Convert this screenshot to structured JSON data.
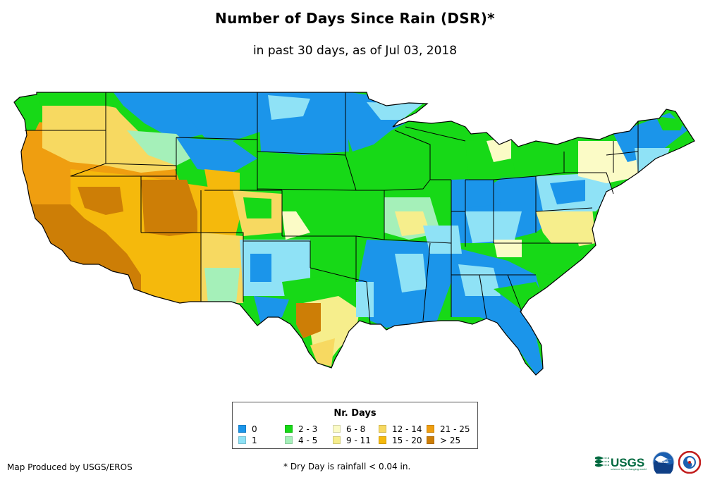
{
  "title": "Number of Days Since Rain (DSR)*",
  "subtitle": "in past 30 days, as of Jul 03, 2018",
  "legend": {
    "title": "Nr. Days",
    "items": [
      {
        "label": "0",
        "color": "#1b95ea"
      },
      {
        "label": "1",
        "color": "#8fe2f6"
      },
      {
        "label": "2 - 3",
        "color": "#17d917"
      },
      {
        "label": "4 - 5",
        "color": "#a5f0b9"
      },
      {
        "label": "6 - 8",
        "color": "#fbfbc6"
      },
      {
        "label": "9 - 11",
        "color": "#f6ee8c"
      },
      {
        "label": "12 - 14",
        "color": "#f7d961"
      },
      {
        "label": "15 - 20",
        "color": "#f5b90c"
      },
      {
        "label": "21 - 25",
        "color": "#ef9e10"
      },
      {
        "label": "> 25",
        "color": "#cd7e06"
      }
    ]
  },
  "credit": "Map Produced by USGS/EROS",
  "footnote": "* Dry Day is rainfall < 0.04 in.",
  "logos": {
    "usgs": "USGS",
    "usgs_tagline": "science for a changing world",
    "noaa": "noaa"
  }
}
